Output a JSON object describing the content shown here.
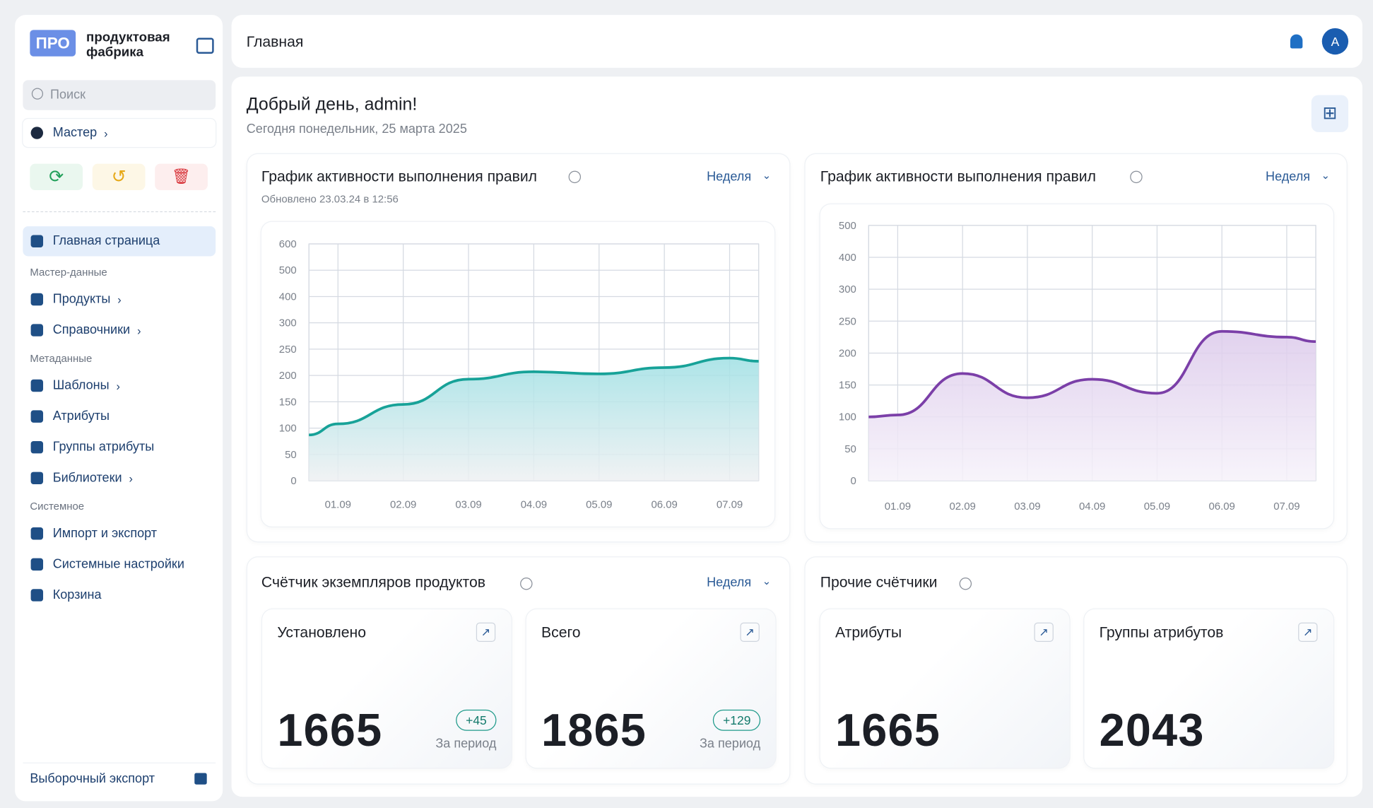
{
  "sidebar": {
    "logo_badge": "ПРО",
    "logo_line1": "продуктовая",
    "logo_line2": "фабрика",
    "search_placeholder": "Поиск",
    "workspace": "Мастер",
    "home": "Главная страница",
    "sections": [
      {
        "title": "Мастер-данные",
        "items": [
          {
            "label": "Продукты",
            "submenu": true
          },
          {
            "label": "Справочники",
            "submenu": true
          }
        ]
      },
      {
        "title": "Метаданные",
        "items": [
          {
            "label": "Шаблоны",
            "submenu": true
          },
          {
            "label": "Атрибуты",
            "submenu": false
          },
          {
            "label": "Группы атрибуты",
            "submenu": false
          },
          {
            "label": "Библиотеки",
            "submenu": true
          }
        ]
      },
      {
        "title": "Системное",
        "items": [
          {
            "label": "Импорт и экспорт",
            "submenu": false
          },
          {
            "label": "Системные настройки",
            "submenu": false
          },
          {
            "label": "Корзина",
            "submenu": false
          }
        ]
      }
    ],
    "footer": "Выборочный экспорт"
  },
  "header": {
    "title": "Главная",
    "avatar": "A"
  },
  "greeting": {
    "title": "Добрый день, admin!",
    "subtitle": "Сегодня понедельник, 25 марта 2025"
  },
  "chart_data": [
    {
      "type": "line",
      "title": "График активности выполнения правил",
      "period": "Неделя",
      "updated": "Обновлено 23.03.24 в 12:56",
      "categories": [
        null,
        "01.09",
        "02.09",
        "03.09",
        "04.09",
        "05.09",
        "06.09",
        "07.09",
        null
      ],
      "values": [
        87,
        108,
        145,
        193,
        207,
        203,
        215,
        233,
        227
      ],
      "color": "#17a298",
      "area_color": "#9fe0e4",
      "ylim": [
        0,
        600
      ],
      "yticks": [
        0,
        50,
        100,
        150,
        200,
        250,
        300,
        400,
        500,
        600
      ],
      "grid": true
    },
    {
      "type": "line",
      "title": "График активности выполнения правил",
      "period": "Неделя",
      "categories": [
        null,
        "01.09",
        "02.09",
        "03.09",
        "04.09",
        "05.09",
        "06.09",
        "07.09",
        null
      ],
      "values": [
        100,
        103,
        168,
        130,
        159,
        137,
        234,
        225,
        218
      ],
      "color": "#7b3fa8",
      "area_color": "#dccaeb",
      "ylim": [
        0,
        500
      ],
      "yticks": [
        0,
        50,
        100,
        150,
        200,
        250,
        300,
        400,
        500
      ],
      "grid": true
    }
  ],
  "counters": [
    {
      "title": "Счётчик экземпляров продуктов",
      "period": "Неделя",
      "cards": [
        {
          "label": "Установлено",
          "value": 1665,
          "delta": "+45",
          "delta_label": "За период"
        },
        {
          "label": "Всего",
          "value": 1865,
          "delta": "+129",
          "delta_label": "За период"
        }
      ]
    },
    {
      "title": "Прочие счётчики",
      "cards": [
        {
          "label": "Атрибуты",
          "value": 1665
        },
        {
          "label": "Группы атрибутов",
          "value": 2043
        }
      ]
    }
  ]
}
